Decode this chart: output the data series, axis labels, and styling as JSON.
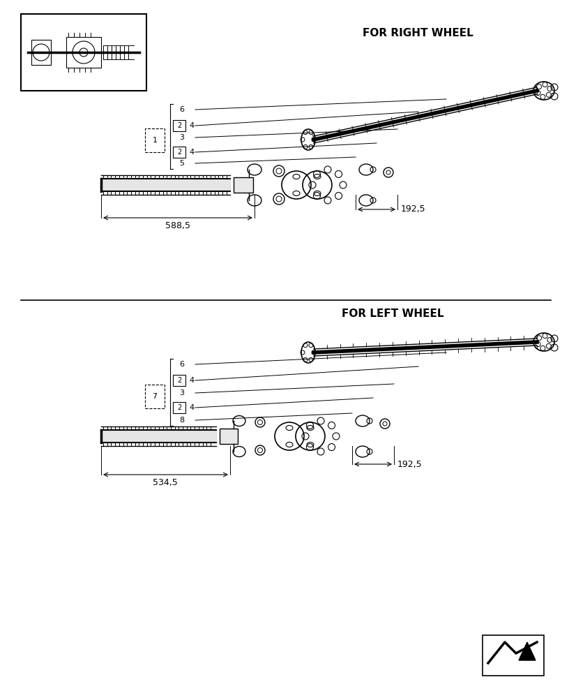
{
  "title": "",
  "bg_color": "#ffffff",
  "line_color": "#000000",
  "text_color": "#000000",
  "right_wheel_label": "FOR RIGHT WHEEL",
  "left_wheel_label": "FOR LEFT WHEEL",
  "dim_588": "588,5",
  "dim_534": "534,5",
  "dim_192": "192,5",
  "right_parts": {
    "callouts": [
      {
        "num": "6",
        "qty": null,
        "box": false
      },
      {
        "num": "4",
        "qty": "2",
        "box": true
      },
      {
        "num": "3",
        "qty": null,
        "box": false
      },
      {
        "num": "4",
        "qty": "2",
        "box": true
      },
      {
        "num": "5",
        "qty": null,
        "box": false
      }
    ],
    "ref_box": "1"
  },
  "left_parts": {
    "callouts": [
      {
        "num": "6",
        "qty": null,
        "box": false
      },
      {
        "num": "4",
        "qty": "2",
        "box": true
      },
      {
        "num": "3",
        "qty": null,
        "box": false
      },
      {
        "num": "4",
        "qty": "2",
        "box": true
      },
      {
        "num": "8",
        "qty": null,
        "box": false
      }
    ],
    "ref_box": "7"
  }
}
